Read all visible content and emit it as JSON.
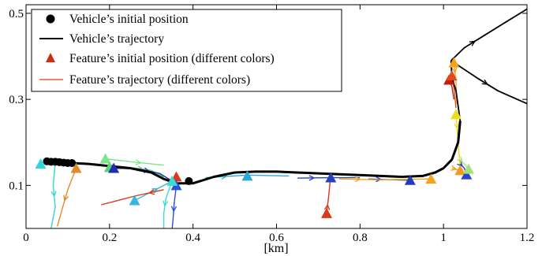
{
  "chart_data": {
    "type": "scatter",
    "xlabel": "[km]",
    "ylabel": "",
    "xlim": [
      0,
      1.2
    ],
    "ylim": [
      0,
      0.52
    ],
    "xticks": [
      0,
      0.2,
      0.4,
      0.6,
      0.8,
      1,
      1.2
    ],
    "xtick_labels": [
      "0",
      "0.2",
      "0.4",
      "0.6",
      "0.8",
      "1",
      "1.2"
    ],
    "yticks": [
      0.1,
      0.3,
      0.5
    ],
    "ytick_labels": [
      "0.1",
      "0.3",
      "0.5"
    ],
    "grid": false,
    "legend": {
      "position": "top-left",
      "entries": [
        {
          "label": "Vehicle’s initial position",
          "marker": "circle",
          "color": "#000000"
        },
        {
          "label": "Vehicle’s trajectory",
          "marker": "line",
          "color": "#000000"
        },
        {
          "label": "Feature’s initial position (different colors)",
          "marker": "triangle",
          "color": "#d42a0c"
        },
        {
          "label": "Feature’s trajectory (different colors)",
          "marker": "line",
          "color": "#e65b3f"
        }
      ]
    },
    "vehicle_initial_positions": [
      {
        "x": 0.05,
        "y": 0.156
      },
      {
        "x": 0.06,
        "y": 0.155
      },
      {
        "x": 0.07,
        "y": 0.155
      },
      {
        "x": 0.08,
        "y": 0.154
      },
      {
        "x": 0.09,
        "y": 0.153
      },
      {
        "x": 0.1,
        "y": 0.152
      },
      {
        "x": 0.11,
        "y": 0.152
      },
      {
        "x": 0.39,
        "y": 0.11
      }
    ],
    "vehicle_trajectories": [
      {
        "x": [
          0.05,
          0.15,
          0.25,
          0.3,
          0.33,
          0.36,
          0.4,
          0.45,
          0.5,
          0.55,
          0.6,
          0.7,
          0.8,
          0.9,
          0.95,
          0.98,
          1.0,
          1.02,
          1.035,
          1.04
        ],
        "y": [
          0.155,
          0.15,
          0.14,
          0.13,
          0.115,
          0.105,
          0.105,
          0.12,
          0.13,
          0.132,
          0.132,
          0.128,
          0.124,
          0.12,
          0.122,
          0.13,
          0.14,
          0.16,
          0.2,
          0.25
        ]
      },
      {
        "x": [
          1.04,
          1.03,
          1.02,
          1.018
        ],
        "y": [
          0.25,
          0.32,
          0.35,
          0.39
        ]
      },
      {
        "x": [
          1.018,
          1.05,
          1.1,
          1.15,
          1.2
        ],
        "y": [
          0.39,
          0.42,
          0.45,
          0.48,
          0.51
        ]
      },
      {
        "x": [
          1.018,
          1.08,
          1.13,
          1.2
        ],
        "y": [
          0.39,
          0.35,
          0.32,
          0.29
        ]
      }
    ],
    "features": [
      {
        "x0": 0.035,
        "y0": 0.15,
        "color": "#33d6d8",
        "path": {
          "x": [
            0.07,
            0.065,
            0.07,
            0.06
          ],
          "y": [
            0.15,
            0.1,
            0.05,
            0.0
          ]
        }
      },
      {
        "x0": 0.12,
        "y0": 0.14,
        "color": "#e08a2a",
        "path": {
          "x": [
            0.12,
            0.1,
            0.085,
            0.075
          ],
          "y": [
            0.14,
            0.09,
            0.04,
            0.005
          ]
        }
      },
      {
        "x0": 0.19,
        "y0": 0.162,
        "color": "#7fe58a",
        "path": {
          "x": [
            0.19,
            0.25,
            0.3,
            0.33
          ],
          "y": [
            0.162,
            0.155,
            0.15,
            0.147
          ]
        }
      },
      {
        "x0": 0.2,
        "y0": 0.142,
        "color": "#5bd07a",
        "path": {
          "x": [
            0.2,
            0.26,
            0.3,
            0.33
          ],
          "y": [
            0.142,
            0.14,
            0.135,
            0.12
          ]
        }
      },
      {
        "x0": 0.21,
        "y0": 0.14,
        "color": "#1c2fb0",
        "path": {
          "x": [
            0.21,
            0.27,
            0.32,
            0.35
          ],
          "y": [
            0.14,
            0.138,
            0.128,
            0.11
          ]
        }
      },
      {
        "x0": 0.26,
        "y0": 0.065,
        "color": "#36b6e0",
        "path": {
          "x": [
            0.26,
            0.3,
            0.33,
            0.35
          ],
          "y": [
            0.065,
            0.085,
            0.1,
            0.11
          ]
        }
      },
      {
        "x0": 0.36,
        "y0": 0.12,
        "color": "#d9381b",
        "path": {
          "x": [
            0.33,
            0.26,
            0.18
          ],
          "y": [
            0.09,
            0.075,
            0.055
          ]
        }
      },
      {
        "x0": 0.36,
        "y0": 0.1,
        "color": "#2a4fd8",
        "path": {
          "x": [
            0.36,
            0.355,
            0.352,
            0.35
          ],
          "y": [
            0.1,
            0.06,
            0.02,
            0.0
          ]
        }
      },
      {
        "x0": 0.35,
        "y0": 0.11,
        "color": "#41d9d0",
        "path": {
          "x": [
            0.35,
            0.335,
            0.33,
            0.33
          ],
          "y": [
            0.11,
            0.07,
            0.035,
            0.0
          ]
        }
      },
      {
        "x0": 0.53,
        "y0": 0.122,
        "color": "#2da7d8",
        "path": {
          "x": [
            0.43,
            0.53,
            0.63
          ],
          "y": [
            0.118,
            0.124,
            0.122
          ]
        }
      },
      {
        "x0": 0.72,
        "y0": 0.035,
        "color": "#d9381b",
        "path": {
          "x": [
            0.72,
            0.725,
            0.73
          ],
          "y": [
            0.035,
            0.075,
            0.125
          ]
        }
      },
      {
        "x0": 0.73,
        "y0": 0.118,
        "color": "#2840c0",
        "path": {
          "x": [
            0.65,
            0.73,
            0.8
          ],
          "y": [
            0.117,
            0.118,
            0.118
          ]
        }
      },
      {
        "x0": 0.92,
        "y0": 0.112,
        "color": "#243ab8",
        "path": {
          "x": [
            0.82,
            0.88,
            0.92
          ],
          "y": [
            0.115,
            0.113,
            0.112
          ]
        }
      },
      {
        "x0": 0.97,
        "y0": 0.115,
        "color": "#f3a51d",
        "path": {
          "x": [
            0.75,
            0.85,
            0.97
          ],
          "y": [
            0.115,
            0.113,
            0.115
          ]
        }
      },
      {
        "x0": 1.013,
        "y0": 0.345,
        "color": "#c21e0c",
        "path": {
          "x": [
            1.013,
            1.02,
            1.025
          ],
          "y": [
            0.345,
            0.33,
            0.3
          ]
        }
      },
      {
        "x0": 1.02,
        "y0": 0.355,
        "color": "#e04a1d",
        "path": {
          "x": [
            1.02,
            1.026,
            1.03
          ],
          "y": [
            0.355,
            0.32,
            0.28
          ]
        }
      },
      {
        "x0": 1.025,
        "y0": 0.385,
        "color": "#f5a31b",
        "path": {
          "x": [
            1.025,
            1.03,
            1.032
          ],
          "y": [
            0.385,
            0.34,
            0.29
          ]
        }
      },
      {
        "x0": 1.03,
        "y0": 0.265,
        "color": "#eddb1e",
        "path": {
          "x": [
            1.03,
            1.035,
            1.04
          ],
          "y": [
            0.265,
            0.2,
            0.14
          ]
        }
      },
      {
        "x0": 1.04,
        "y0": 0.135,
        "color": "#f59a1c",
        "path": {
          "x": [
            1.02,
            1.04,
            1.05
          ],
          "y": [
            0.14,
            0.135,
            0.13
          ]
        }
      },
      {
        "x0": 1.055,
        "y0": 0.125,
        "color": "#2846c6",
        "path": {
          "x": [
            1.04,
            1.05,
            1.055
          ],
          "y": [
            0.15,
            0.14,
            0.125
          ]
        }
      },
      {
        "x0": 1.06,
        "y0": 0.138,
        "color": "#9fe27a",
        "path": {
          "x": [
            1.04,
            1.05,
            1.06
          ],
          "y": [
            0.16,
            0.15,
            0.138
          ]
        }
      }
    ]
  }
}
